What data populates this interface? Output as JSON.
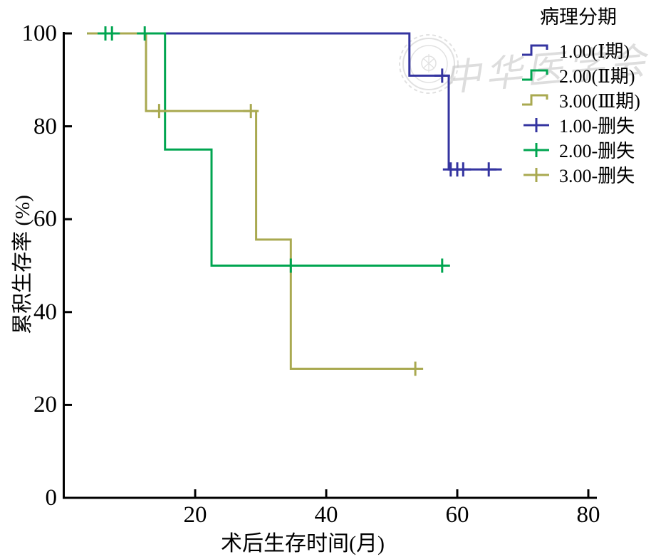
{
  "chart_data": {
    "type": "line",
    "subtype": "kaplan-meier-step",
    "title": "",
    "xlabel": "术后生存时间(月)",
    "ylabel": "累积生存率 (%)",
    "xlim": [
      0,
      81
    ],
    "ylim": [
      0,
      100
    ],
    "xticks": [
      20,
      40,
      60,
      80
    ],
    "yticks": [
      0,
      20,
      40,
      60,
      80,
      100
    ],
    "grid": false,
    "legend_position": "top-right-outside",
    "series": [
      {
        "id": "stage1",
        "name": "1.00(Ⅰ期)",
        "color": "#3434A0",
        "step_points": [
          [
            3.5,
            100
          ],
          [
            52.7,
            100
          ],
          [
            52.7,
            90.9
          ],
          [
            58.7,
            90.9
          ],
          [
            58.7,
            70.7
          ],
          [
            66.8,
            70.7
          ]
        ],
        "censored_points": [
          [
            57.7,
            90.9
          ],
          [
            59.0,
            70.7
          ],
          [
            60.0,
            70.7
          ],
          [
            60.9,
            70.7
          ],
          [
            64.8,
            70.7
          ]
        ]
      },
      {
        "id": "stage2",
        "name": "2.00(Ⅱ期)",
        "color": "#00A550",
        "step_points": [
          [
            3.5,
            100
          ],
          [
            15.4,
            100
          ],
          [
            15.4,
            75
          ],
          [
            22.5,
            75
          ],
          [
            22.5,
            50
          ],
          [
            58.4,
            50
          ]
        ],
        "censored_points": [
          [
            6.3,
            100
          ],
          [
            7.3,
            100
          ],
          [
            12.3,
            100
          ],
          [
            34.6,
            50
          ],
          [
            57.7,
            50
          ]
        ]
      },
      {
        "id": "stage3",
        "name": "3.00(Ⅲ期)",
        "color": "#A9A950",
        "step_points": [
          [
            3.5,
            100
          ],
          [
            12.5,
            100
          ],
          [
            12.5,
            83.3
          ],
          [
            29.3,
            83.3
          ],
          [
            29.3,
            55.6
          ],
          [
            34.6,
            55.6
          ],
          [
            34.6,
            27.8
          ],
          [
            54.1,
            27.8
          ]
        ],
        "censored_points": [
          [
            14.5,
            83.3
          ],
          [
            28.5,
            83.3
          ],
          [
            53.6,
            27.8
          ]
        ]
      }
    ],
    "legend": {
      "title": "病理分期",
      "entries": [
        {
          "id": "stage1-line",
          "label": "1.00(Ⅰ期)",
          "glyph": "step-line",
          "color": "#3434A0"
        },
        {
          "id": "stage2-line",
          "label": "2.00(Ⅱ期)",
          "glyph": "step-line",
          "color": "#00A550"
        },
        {
          "id": "stage3-line",
          "label": "3.00(Ⅲ期)",
          "glyph": "step-line",
          "color": "#A9A950"
        },
        {
          "id": "stage1-censored",
          "label": "1.00-删失",
          "glyph": "plus-censor",
          "color": "#3434A0"
        },
        {
          "id": "stage2-censored",
          "label": "2.00-删失",
          "glyph": "plus-censor",
          "color": "#00A550"
        },
        {
          "id": "stage3-censored",
          "label": "3.00-删失",
          "glyph": "plus-censor",
          "color": "#A9A950"
        }
      ]
    }
  },
  "watermark": {
    "text": "中华医学会"
  },
  "colors": {
    "stage1_blue": "#3434A0",
    "stage2_green": "#00A550",
    "stage3_olive": "#A9A950",
    "axis": "#000000",
    "watermark_gray": "#C9C9C9"
  }
}
